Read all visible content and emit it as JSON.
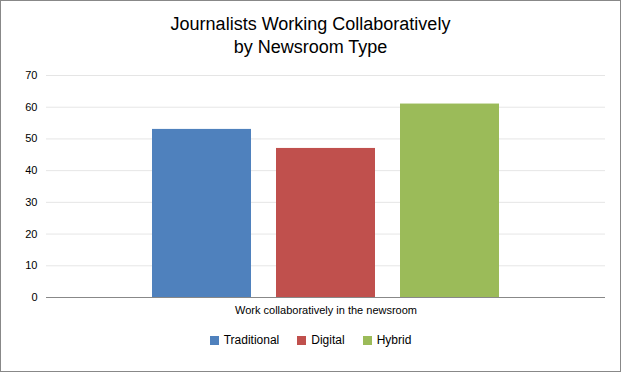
{
  "chart_data": {
    "type": "bar",
    "title": "Journalists Working Collaboratively\nby Newsroom Type",
    "categories": [
      "Work collaboratively in the newsroom"
    ],
    "series": [
      {
        "name": "Traditional",
        "color": "#4f81bd",
        "values": [
          53
        ]
      },
      {
        "name": "Digital",
        "color": "#c0504d",
        "values": [
          47
        ]
      },
      {
        "name": "Hybrid",
        "color": "#9bbb59",
        "values": [
          61
        ]
      }
    ],
    "ylim": [
      0,
      70
    ],
    "yticks": [
      0,
      10,
      20,
      30,
      40,
      50,
      60,
      70
    ],
    "grid": true,
    "legend": "bottom"
  }
}
